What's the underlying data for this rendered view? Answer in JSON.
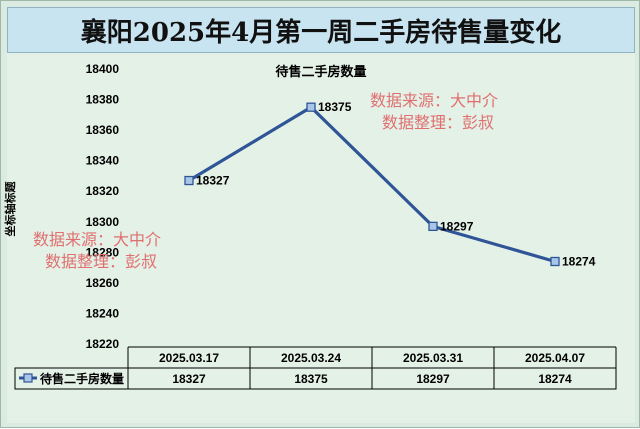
{
  "header": {
    "title": "襄阳2025年4月第一周二手房待售量变化"
  },
  "chart_data": {
    "type": "line",
    "title": "待售二手房数量",
    "ylabel": "坐标轴标题",
    "categories": [
      "2025.03.17",
      "2025.03.24",
      "2025.03.31",
      "2025.04.07"
    ],
    "series": [
      {
        "name": "待售二手房数量",
        "values": [
          18327,
          18375,
          18297,
          18274
        ]
      }
    ],
    "ylim": [
      18220,
      18400
    ],
    "yticks": [
      18400,
      18380,
      18360,
      18340,
      18320,
      18300,
      18280,
      18260,
      18240,
      18220
    ],
    "line_color": "#2f5597",
    "data_labels": true,
    "data_table": true
  },
  "watermarks": [
    {
      "line1": "数据来源：大中介",
      "line2": "数据整理：彭叔"
    },
    {
      "line1": "数据来源：大中介",
      "line2": "数据整理：彭叔"
    }
  ]
}
